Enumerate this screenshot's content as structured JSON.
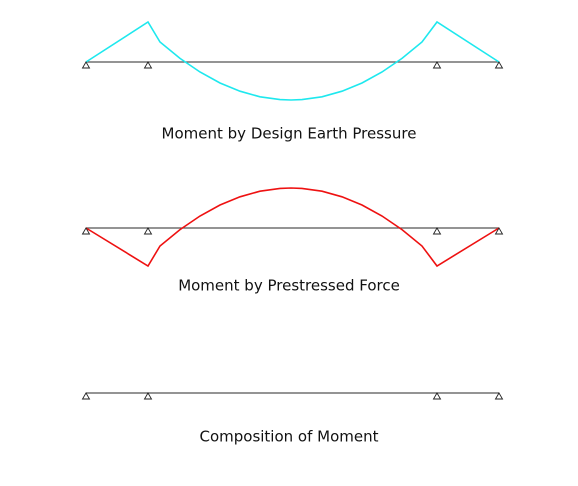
{
  "panels": [
    {
      "caption": "Moment by Design Earth Pressure"
    },
    {
      "caption": "Moment by Prestressed Force"
    },
    {
      "caption": "Composition of Moment"
    }
  ]
}
